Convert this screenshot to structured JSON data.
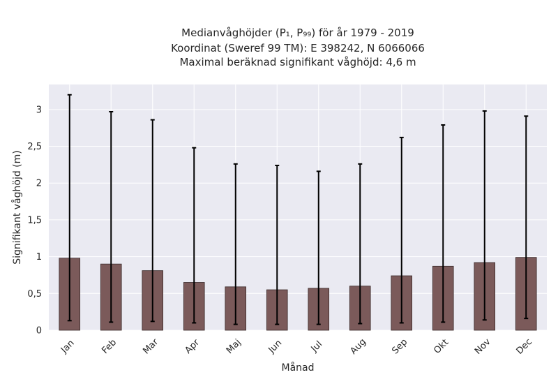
{
  "chart_data": {
    "type": "bar",
    "title_lines": [
      "Medianvåghöjder (P₁, P₉₉) för år 1979 - 2019",
      "Koordinat (Sweref 99 TM): E 398242, N 6066066",
      "Maximal beräknad signifikant våghöjd: 4,6 m"
    ],
    "xlabel": "Månad",
    "ylabel": "Signifikant våghöjd (m)",
    "categories": [
      "Jan",
      "Feb",
      "Mar",
      "Apr",
      "Maj",
      "Jun",
      "Jul",
      "Aug",
      "Sep",
      "Okt",
      "Nov",
      "Dec"
    ],
    "series": [
      {
        "values": [
          0.98,
          0.9,
          0.81,
          0.65,
          0.59,
          0.55,
          0.57,
          0.6,
          0.74,
          0.87,
          0.92,
          0.99
        ],
        "p1": [
          0.13,
          0.11,
          0.12,
          0.1,
          0.08,
          0.08,
          0.08,
          0.09,
          0.1,
          0.11,
          0.14,
          0.16
        ],
        "p99": [
          3.2,
          2.97,
          2.86,
          2.48,
          2.26,
          2.24,
          2.16,
          2.26,
          2.62,
          2.79,
          2.98,
          2.91
        ]
      }
    ],
    "yticks": [
      0,
      0.5,
      1,
      1.5,
      2,
      2.5,
      3
    ],
    "ytick_labels": [
      "0",
      "0,5",
      "1",
      "1,5",
      "2",
      "2,5",
      "3"
    ],
    "ylim": [
      0,
      3.34
    ],
    "grid": true,
    "colors": {
      "bar": "#7b5a5a",
      "bar_edge": "#3a2a2a",
      "errorbar": "#000000",
      "plot_background": "#eaeaf2",
      "grid": "#ffffff"
    }
  }
}
